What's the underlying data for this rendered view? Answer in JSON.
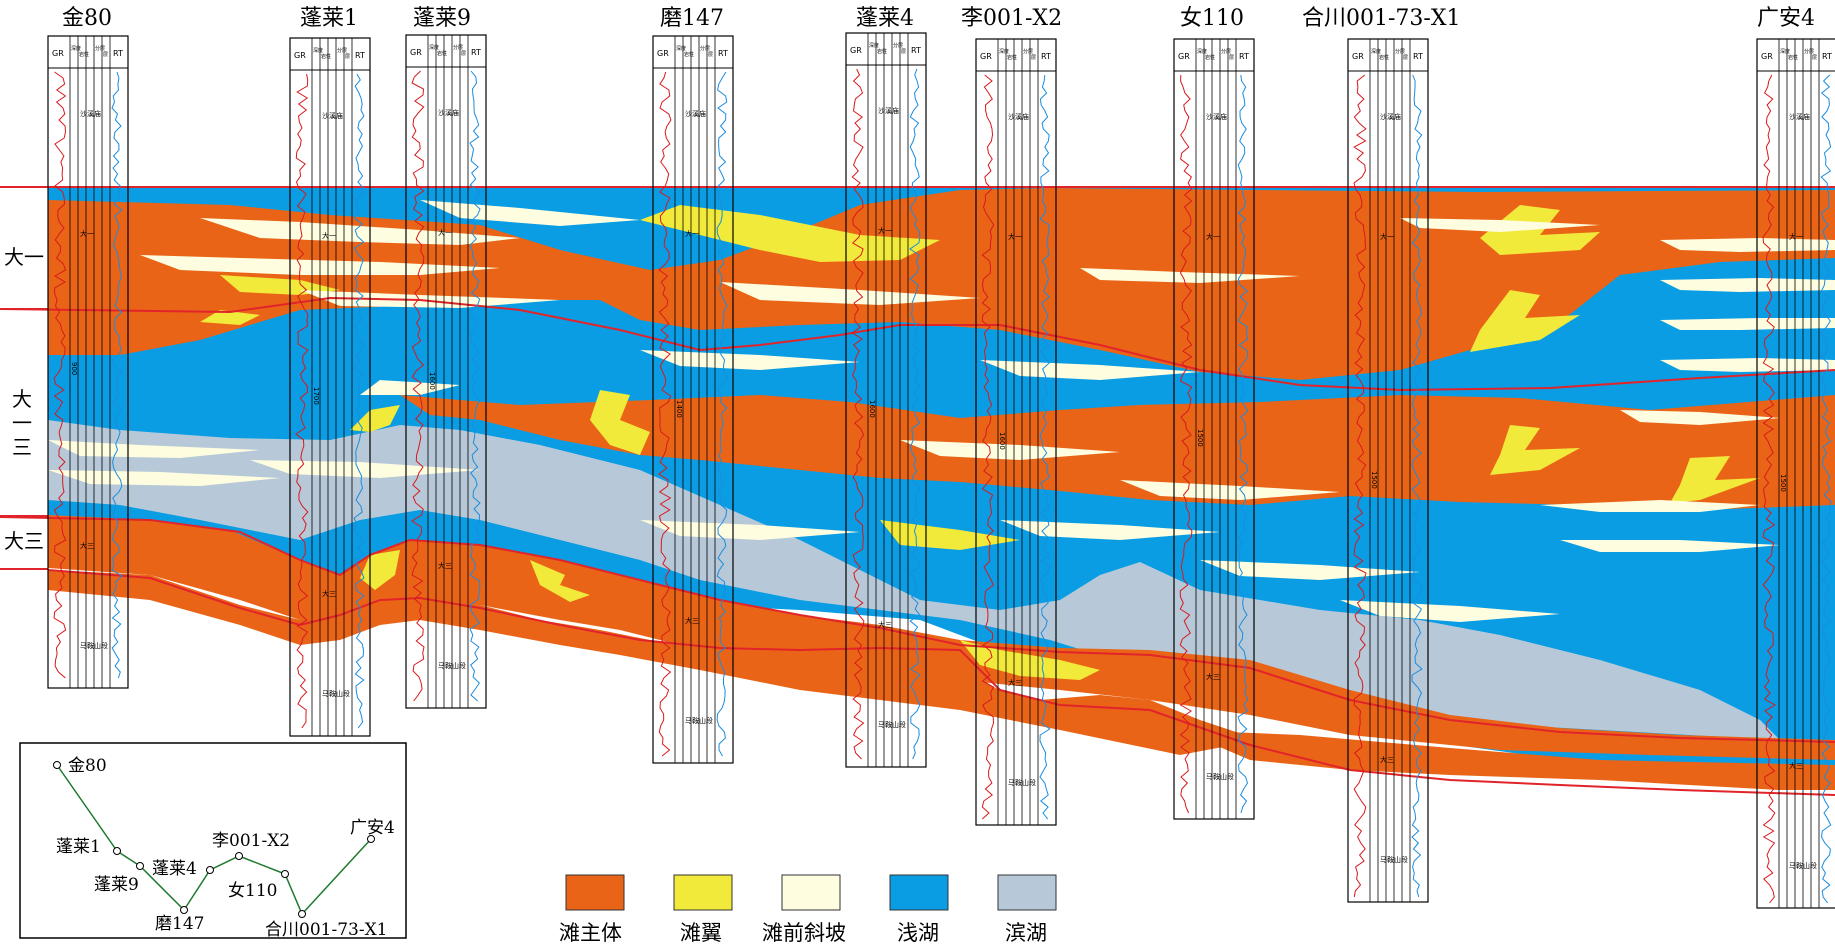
{
  "wells": [
    {
      "name": "金80",
      "depth_marks": [
        "900"
      ]
    },
    {
      "name": "蓬莱1",
      "depth_marks": [
        "1700"
      ]
    },
    {
      "name": "蓬莱9",
      "depth_marks": [
        "1600"
      ]
    },
    {
      "name": "磨147",
      "depth_marks": [
        "1400"
      ]
    },
    {
      "name": "蓬莱4",
      "depth_marks": [
        "1600"
      ]
    },
    {
      "name": "李001-X2",
      "depth_marks": [
        "1600"
      ]
    },
    {
      "name": "女110",
      "depth_marks": [
        "1500"
      ]
    },
    {
      "name": "合川001-73-X1",
      "depth_marks": [
        "1500"
      ]
    },
    {
      "name": "广安4",
      "depth_marks": [
        "1500"
      ]
    }
  ],
  "track_headers": {
    "gr": "GR",
    "lith": "深度",
    "lith2": "岩性",
    "sub1": "分层",
    "sub2": "层",
    "rt": "RT"
  },
  "zones": [
    {
      "label": "大一"
    },
    {
      "label": "大一三"
    },
    {
      "label": "大三"
    }
  ],
  "legend": [
    {
      "label": "滩主体",
      "color": "#ea6418"
    },
    {
      "label": "滩翼",
      "color": "#f2ea3a"
    },
    {
      "label": "滩前斜坡",
      "color": "#fefde0"
    },
    {
      "label": "浅湖",
      "color": "#0a9de3"
    },
    {
      "label": "滨湖",
      "color": "#b7c9d8"
    }
  ],
  "colors": {
    "beach_main": "#ea6418",
    "beach_wing": "#f2ea3a",
    "slope": "#fefde0",
    "shallow": "#0a9de3",
    "shore": "#b7c9d8",
    "boundary": "#e1242a",
    "gr_curve": "#d7191c",
    "rt_curve": "#1a8ce0"
  },
  "location_map": {
    "points": [
      "金80",
      "蓬莱1",
      "蓬莱9",
      "蓬莱4",
      "李001-X2",
      "磨147",
      "女110",
      "合川001-73-X1",
      "广安4"
    ]
  },
  "well_annotations": {
    "upper": "沙溪庙",
    "zone1": "大一",
    "zone3": "大三",
    "bottom": "马鞍山段"
  }
}
